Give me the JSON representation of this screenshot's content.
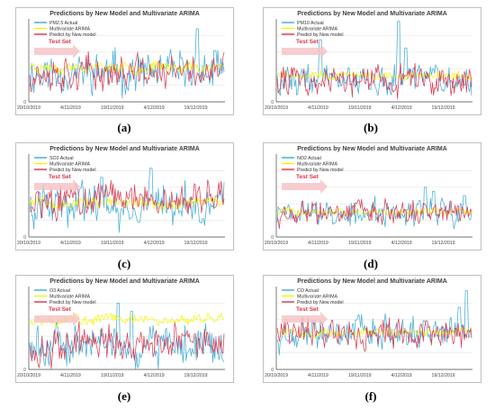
{
  "captions": [
    "(a)",
    "(b)",
    "(c)",
    "(d)",
    "(e)",
    "(f)"
  ],
  "colors": {
    "actual": "#3aa9d6",
    "arima": "#f4f400",
    "newmodel": "#d8344a",
    "testset": "#f6c4c8",
    "axis": "#444444",
    "grid": "#e6e6e6"
  },
  "chart_data": [
    {
      "type": "line",
      "title": "Predictions by New Model and Multivariate ARIMA",
      "series": [
        {
          "name": "PM2.5 Actual",
          "values": []
        },
        {
          "name": "Multivariate ARIMA",
          "values": []
        },
        {
          "name": "Predict by New model",
          "values": []
        }
      ],
      "annotation": "Test Set",
      "x_ticks": [
        "20/10/2019",
        "4/11/2019",
        "19/11/2019",
        "4/12/2019",
        "19/12/2019"
      ],
      "y_ticks": [
        "0"
      ],
      "shape": {
        "actual": 0.35,
        "arima": 0.42,
        "newmodel": 0.35,
        "noise": 0.22,
        "spikes": [
          [
            0.86,
            0.88
          ],
          [
            0.95,
            0.62
          ]
        ]
      }
    },
    {
      "type": "line",
      "title": "Predictions by New Model and Multivariate ARIMA",
      "series": [
        {
          "name": "PM10 Actual",
          "values": []
        },
        {
          "name": "Multivariate ARIMA",
          "values": []
        },
        {
          "name": "Predict by New model",
          "values": []
        }
      ],
      "annotation": "Test Set",
      "x_ticks": [
        "20/10/2019",
        "4/11/2019",
        "19/11/2019",
        "4/12/2019",
        "19/12/2019"
      ],
      "y_ticks": [
        "0"
      ],
      "shape": {
        "actual": 0.28,
        "arima": 0.32,
        "newmodel": 0.25,
        "noise": 0.17,
        "spikes": [
          [
            0.22,
            0.75
          ],
          [
            0.62,
            0.97
          ],
          [
            0.66,
            0.65
          ]
        ]
      }
    },
    {
      "type": "line",
      "title": "Predictions by New Model and Multivariate ARIMA",
      "series": [
        {
          "name": "SO2 Actual",
          "values": []
        },
        {
          "name": "Multivariate ARIMA",
          "values": []
        },
        {
          "name": "Predict by New model",
          "values": []
        }
      ],
      "annotation": "Test Set",
      "x_ticks": [
        "20/10/2019",
        "4/11/2019",
        "19/11/2019",
        "4/12/2019",
        "19/12/2019"
      ],
      "y_ticks": [
        "0"
      ],
      "shape": {
        "actual": 0.38,
        "arima": 0.42,
        "newmodel": 0.45,
        "noise": 0.22,
        "spikes": [
          [
            0.37,
            0.72
          ],
          [
            0.62,
            0.83
          ]
        ]
      }
    },
    {
      "type": "line",
      "title": "Predictions by New Model and Multivariate ARIMA",
      "series": [
        {
          "name": "NO2 Actual",
          "values": []
        },
        {
          "name": "Multivariate ARIMA",
          "values": []
        },
        {
          "name": "Predict by New model",
          "values": []
        }
      ],
      "annotation": "Test Set",
      "x_ticks": [
        "20/10/2019",
        "4/11/2019",
        "19/11/2019",
        "4/12/2019",
        "19/12/2019"
      ],
      "y_ticks": [
        "0"
      ],
      "shape": {
        "actual": 0.28,
        "arima": 0.3,
        "newmodel": 0.28,
        "noise": 0.15,
        "spikes": [
          [
            0.76,
            0.6
          ],
          [
            0.8,
            0.55
          ],
          [
            0.96,
            0.5
          ]
        ]
      }
    },
    {
      "type": "line",
      "title": "Predictions by New Model and Multivariate ARIMA",
      "series": [
        {
          "name": "O3 Actual",
          "values": []
        },
        {
          "name": "Multivariate ARIMA",
          "values": []
        },
        {
          "name": "Predict by New model",
          "values": []
        }
      ],
      "annotation": "Test Set",
      "x_ticks": [
        "20/10/2019",
        "4/11/2019",
        "19/11/2019",
        "4/12/2019",
        "19/12/2019"
      ],
      "y_ticks": [
        "0"
      ],
      "shape": {
        "actual": 0.3,
        "arima": 0.6,
        "newmodel": 0.3,
        "noise": 0.22,
        "spikes": [
          [
            0.45,
            0.8
          ],
          [
            0.52,
            0.7
          ]
        ]
      }
    },
    {
      "type": "line",
      "title": "Predictions by New Model and Multivariate ARIMA",
      "series": [
        {
          "name": "CO Actual",
          "values": []
        },
        {
          "name": "Multivariate ARIMA",
          "values": []
        },
        {
          "name": "Predict by New model",
          "values": []
        }
      ],
      "annotation": "Test Set",
      "x_ticks": [
        "20/10/2019",
        "4/11/2019",
        "19/11/2019",
        "4/12/2019",
        "19/12/2019"
      ],
      "y_ticks": [
        "0"
      ],
      "shape": {
        "actual": 0.42,
        "arima": 0.45,
        "newmodel": 0.45,
        "noise": 0.18,
        "spikes": [
          [
            0.97,
            0.95
          ],
          [
            0.93,
            0.75
          ]
        ]
      }
    }
  ]
}
